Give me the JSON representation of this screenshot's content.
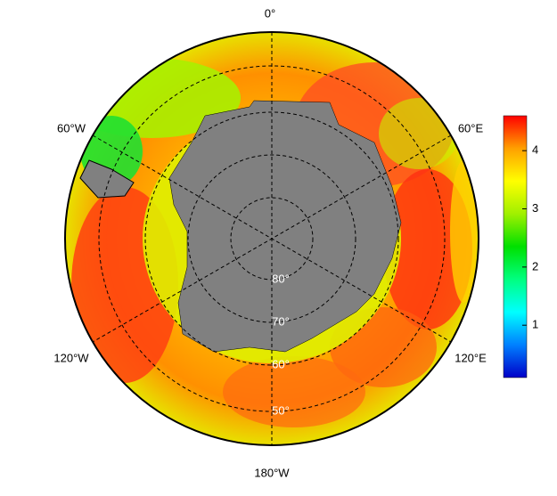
{
  "map": {
    "longitude_labels": [
      "0°",
      "60°E",
      "120°E",
      "180°W",
      "120°W",
      "60°W"
    ],
    "latitude_labels": [
      "80°",
      "70°",
      "60°",
      "50°"
    ]
  },
  "colorbar": {
    "lim": [
      0.1,
      4.6
    ],
    "ticks": [
      1,
      2,
      3,
      4
    ],
    "colors": [
      "#0000c8",
      "#0080ff",
      "#00ffff",
      "#00ff80",
      "#00e000",
      "#a0f000",
      "#ffff00",
      "#ffa000",
      "#ff0000"
    ]
  }
}
